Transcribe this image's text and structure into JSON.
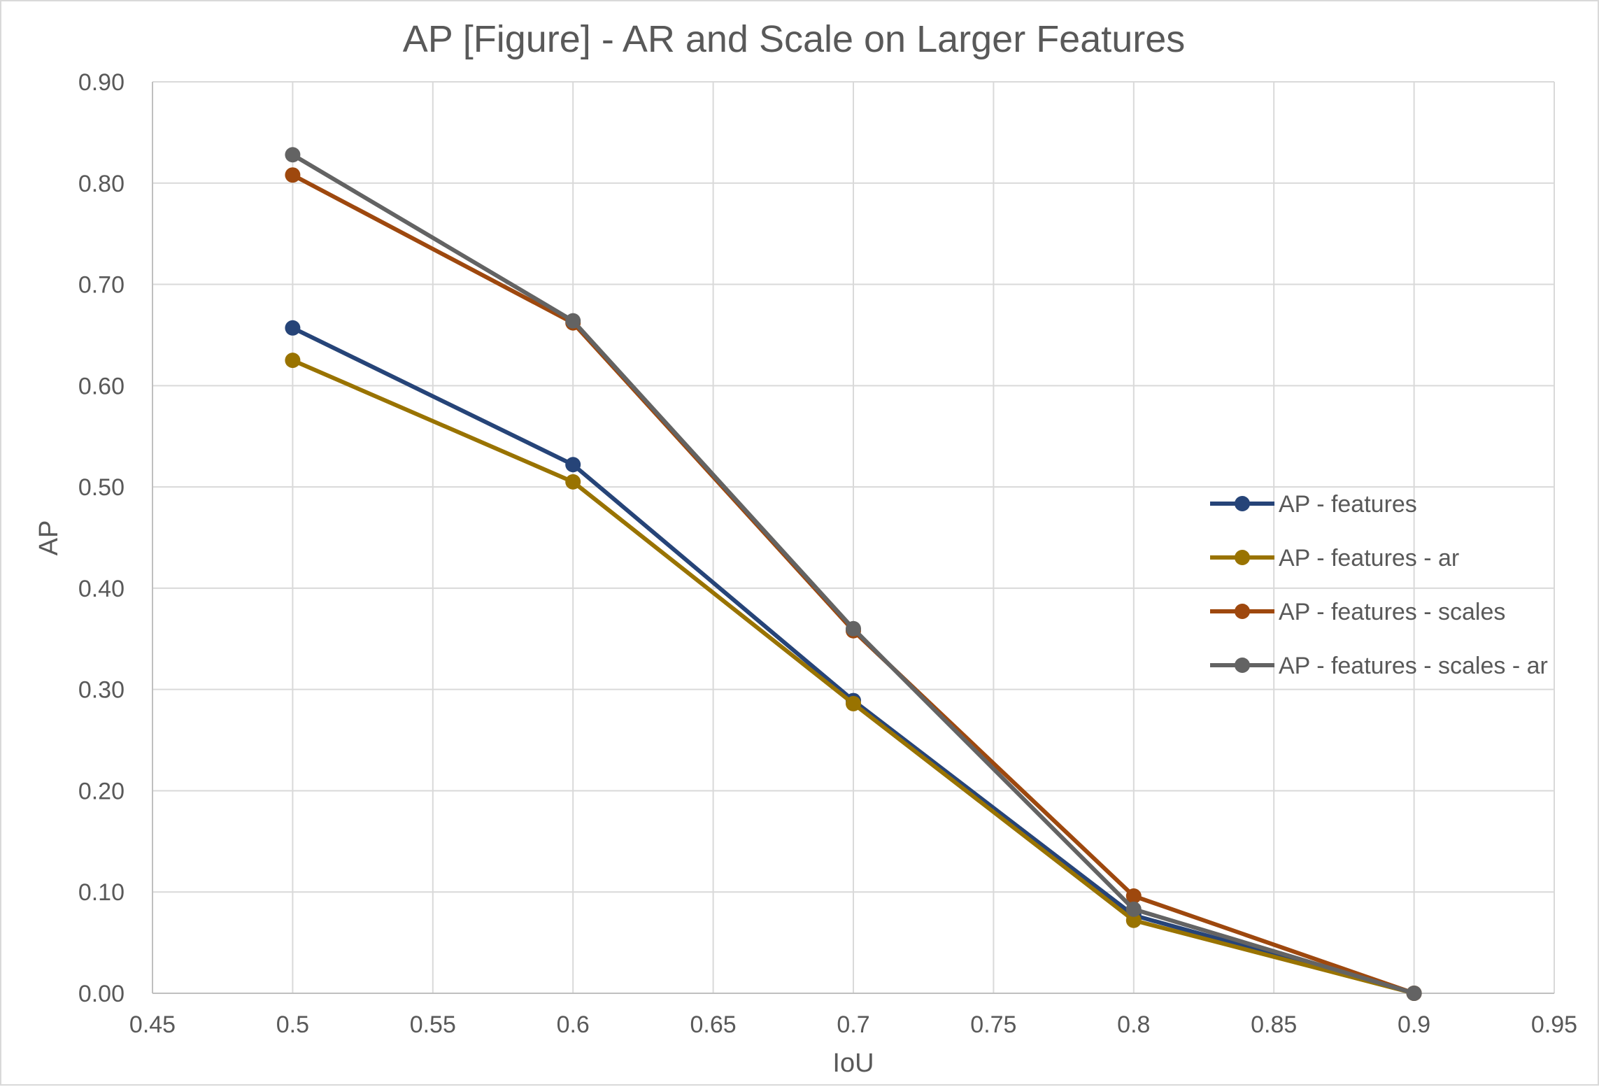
{
  "chart_data": {
    "type": "line",
    "title": "AP [Figure] - AR and Scale on Larger Features",
    "xlabel": "IoU",
    "ylabel": "AP",
    "xlim": [
      0.45,
      0.95
    ],
    "ylim": [
      0.0,
      0.9
    ],
    "x_ticks": [
      "0.45",
      "0.5",
      "0.55",
      "0.6",
      "0.65",
      "0.7",
      "0.75",
      "0.8",
      "0.85",
      "0.9",
      "0.95"
    ],
    "y_ticks": [
      "0.00",
      "0.10",
      "0.20",
      "0.30",
      "0.40",
      "0.50",
      "0.60",
      "0.70",
      "0.80",
      "0.90"
    ],
    "grid": true,
    "legend_position": "right",
    "x": [
      0.5,
      0.6,
      0.7,
      0.8,
      0.9
    ],
    "series": [
      {
        "name": "AP - features",
        "color": "#264478",
        "values": [
          0.657,
          0.522,
          0.289,
          0.077,
          0.0
        ]
      },
      {
        "name": "AP - features - ar",
        "color": "#997300",
        "values": [
          0.625,
          0.505,
          0.286,
          0.072,
          0.0
        ]
      },
      {
        "name": "AP - features - scales",
        "color": "#9e480e",
        "values": [
          0.808,
          0.662,
          0.358,
          0.096,
          0.0
        ]
      },
      {
        "name": "AP - features - scales - ar",
        "color": "#636363",
        "values": [
          0.828,
          0.664,
          0.36,
          0.083,
          0.0
        ]
      }
    ]
  }
}
